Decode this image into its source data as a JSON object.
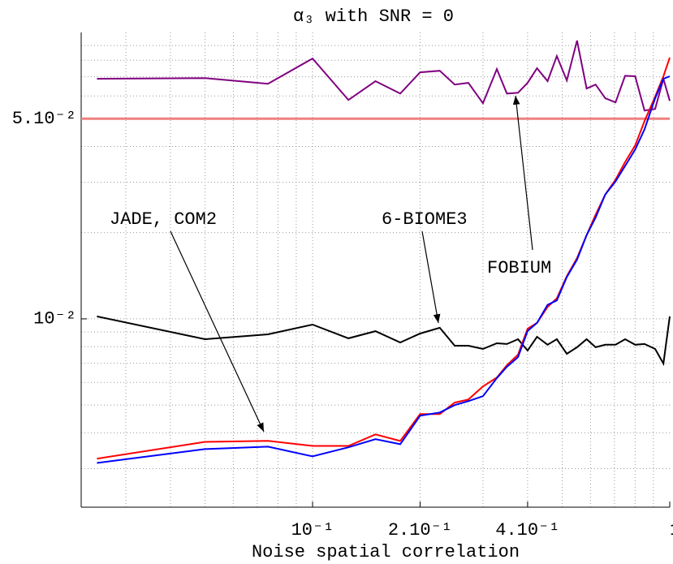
{
  "chart_data": {
    "type": "line",
    "title": "α₃ with SNR = 0",
    "x_label": "Noise spatial correlation",
    "x_log": true,
    "y_log": true,
    "grid": true,
    "xlim": [
      0.0225,
      1
    ],
    "ylim": [
      0.0022,
      0.1
    ],
    "xticks": [
      {
        "value": 0.1,
        "label": "10⁻¹"
      },
      {
        "value": 0.2,
        "label": "2.10⁻¹"
      },
      {
        "value": 0.4,
        "label": "4.10⁻¹"
      },
      1
    ],
    "yticks": [
      {
        "value": 0.01,
        "label": "10⁻²"
      },
      {
        "value": 0.05,
        "label": "5.10⁻²"
      }
    ],
    "reference_line": {
      "value": 0.05,
      "color": "#f08080"
    },
    "x": [
      0.0249,
      0.05,
      0.075,
      0.1,
      0.126,
      0.15,
      0.176,
      0.2,
      0.227,
      0.25,
      0.273,
      0.3,
      0.328,
      0.35,
      0.376,
      0.4,
      0.425,
      0.455,
      0.483,
      0.515,
      0.55,
      0.585,
      0.62,
      0.66,
      0.705,
      0.75,
      0.8,
      0.85,
      0.91,
      0.96,
      1.0
    ],
    "series": [
      {
        "name": "FOBIUM",
        "color": "#800080",
        "values": [
          0.0689,
          0.0693,
          0.0662,
          0.0811,
          0.0581,
          0.0676,
          0.0612,
          0.0726,
          0.0735,
          0.0658,
          0.0667,
          0.0566,
          0.0745,
          0.0612,
          0.0616,
          0.0667,
          0.075,
          0.0676,
          0.0827,
          0.068,
          0.0937,
          0.0637,
          0.0658,
          0.0589,
          0.057,
          0.0706,
          0.0703,
          0.0534,
          0.0541,
          0.0689,
          0.0577
        ]
      },
      {
        "name": "6-BIOME3",
        "color": "#000000",
        "values": [
          0.0102,
          0.00849,
          0.00883,
          0.00955,
          0.00855,
          0.00906,
          0.00827,
          0.00889,
          0.00931,
          0.00806,
          0.00806,
          0.00785,
          0.00822,
          0.00817,
          0.00849,
          0.00775,
          0.00866,
          0.00812,
          0.00849,
          0.00755,
          0.00796,
          0.00849,
          0.00796,
          0.00812,
          0.00812,
          0.00849,
          0.00812,
          0.00817,
          0.00785,
          0.00698,
          0.0102
        ]
      },
      {
        "name": "JADE",
        "color": "#ff0000",
        "values": [
          0.00325,
          0.00372,
          0.00375,
          0.0036,
          0.0036,
          0.00395,
          0.00375,
          0.00465,
          0.00465,
          0.0051,
          0.00523,
          0.00581,
          0.00624,
          0.00689,
          0.0075,
          0.00924,
          0.00968,
          0.011,
          0.0118,
          0.0141,
          0.0163,
          0.0196,
          0.0231,
          0.0272,
          0.0306,
          0.0353,
          0.0403,
          0.049,
          0.0597,
          0.0703,
          0.0817
        ]
      },
      {
        "name": "COM2",
        "color": "#0000ff",
        "values": [
          0.00314,
          0.00351,
          0.00358,
          0.00331,
          0.00356,
          0.0038,
          0.00365,
          0.00459,
          0.00471,
          0.005,
          0.00516,
          0.00537,
          0.00621,
          0.0068,
          0.00735,
          0.00907,
          0.00968,
          0.0112,
          0.0116,
          0.014,
          0.0161,
          0.0196,
          0.0226,
          0.0272,
          0.0302,
          0.0342,
          0.039,
          0.0459,
          0.0589,
          0.0689,
          0.0703
        ]
      }
    ],
    "annotations": [
      "JADE, COM2",
      "6-BIOME3",
      "FOBIUM"
    ]
  }
}
